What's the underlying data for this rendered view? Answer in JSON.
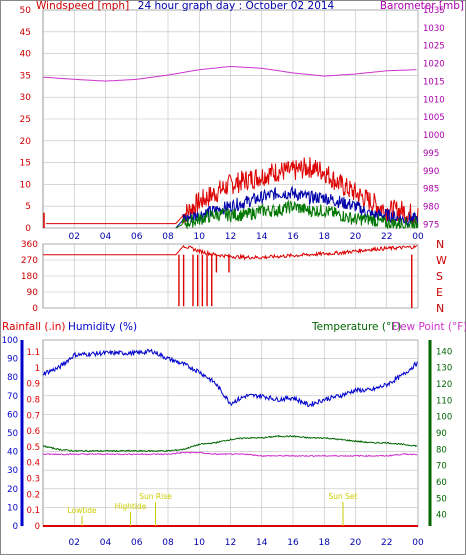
{
  "title": "24 hour graph day : October 02 2014",
  "colors": {
    "wind": "#dd0000",
    "gust_avg": "#0000aa",
    "wind_avg": "#007700",
    "barometer": "#cc33cc",
    "humidity": "#0000cc",
    "temperature": "#006600",
    "dewpoint": "#cc33cc",
    "rain": "#dd0000",
    "sun": "#cccc00",
    "axis_left": "#cc0000",
    "axis_right": "#aa00aa",
    "grid": "#c0c0c0"
  },
  "chart_data": [
    {
      "type": "line",
      "panel": "wind-barometer",
      "title": "24 hour graph day : October 02 2014",
      "ylabel": "Windspeed [mph]",
      "y2label": "Barometer [mb]",
      "x_ticks": [
        "02",
        "04",
        "06",
        "08",
        "10",
        "12",
        "14",
        "16",
        "18",
        "20",
        "22",
        "00"
      ],
      "y_ticks": [
        0,
        5,
        10,
        15,
        20,
        25,
        30,
        35,
        40,
        45,
        50
      ],
      "ylim": [
        0,
        50
      ],
      "y2_ticks": [
        975,
        980,
        985,
        990,
        995,
        1000,
        1005,
        1010,
        1015,
        1020,
        1025,
        1030,
        1035
      ],
      "y2lim": [
        974,
        1035
      ],
      "grid": true,
      "series": [
        {
          "name": "Windspeed",
          "axis": "left",
          "x": [
            0.2,
            0.5,
            1,
            4,
            8.5,
            9,
            10,
            11,
            12,
            13,
            14,
            15,
            16,
            17,
            18,
            19,
            20,
            21,
            22,
            23,
            23.8
          ],
          "y": [
            1,
            1,
            1,
            1,
            1,
            3,
            6,
            8,
            10,
            11,
            12,
            13,
            13,
            14,
            13,
            10,
            8,
            6,
            4,
            4,
            3
          ]
        },
        {
          "name": "",
          "axis": "left",
          "x": [
            8.5,
            9,
            10,
            11,
            12,
            13,
            14,
            15,
            16,
            17,
            18,
            19,
            20,
            21,
            22,
            23,
            23.8
          ],
          "y": [
            0,
            2,
            3,
            4,
            5,
            6,
            7,
            8,
            8,
            7,
            7,
            6,
            5,
            3,
            3,
            2,
            2
          ]
        },
        {
          "name": "",
          "axis": "left",
          "x": [
            8.5,
            9,
            10,
            11,
            12,
            13,
            14,
            15,
            16,
            17,
            18,
            19,
            20,
            21,
            22,
            23,
            23.8
          ],
          "y": [
            0,
            1,
            2,
            3,
            3,
            3,
            4,
            4,
            5,
            4,
            4,
            3,
            2,
            2,
            1,
            1,
            1
          ]
        },
        {
          "name": "Barometer",
          "axis": "right",
          "x": [
            0,
            2,
            4,
            6,
            8,
            10,
            12,
            14,
            16,
            18,
            20,
            22,
            24
          ],
          "y": [
            1016.2,
            1015.6,
            1015.1,
            1015.6,
            1016.8,
            1018.3,
            1019.2,
            1018.7,
            1017.4,
            1016.5,
            1017.1,
            1018.0,
            1018.3
          ]
        }
      ]
    },
    {
      "type": "line",
      "panel": "wind-direction",
      "y_ticks": [
        0,
        90,
        180,
        270,
        360
      ],
      "ylim": [
        0,
        360
      ],
      "y2_ticks": [
        "N",
        "W",
        "S",
        "E",
        "N"
      ],
      "x_ticks": [
        "02",
        "04",
        "06",
        "08",
        "10",
        "12",
        "14",
        "16",
        "18",
        "20",
        "22",
        "00"
      ],
      "grid": true,
      "series": [
        {
          "name": "Wind direction",
          "x": [
            0,
            1,
            2,
            4,
            6,
            8,
            8.5,
            9,
            10,
            11,
            12,
            13,
            14,
            15,
            16,
            17,
            18,
            19,
            20,
            21,
            22,
            23,
            24
          ],
          "y": [
            300,
            300,
            300,
            300,
            300,
            300,
            300,
            350,
            320,
            300,
            290,
            285,
            285,
            290,
            295,
            300,
            305,
            310,
            320,
            330,
            335,
            340,
            345
          ]
        }
      ]
    },
    {
      "type": "line",
      "panel": "humidity-temperature",
      "legend": [
        "Rainfall (.in)",
        "Humidity (%)",
        "Temperature (°F)",
        "Dew Point (°F)"
      ],
      "y_rain_ticks": [
        0,
        0.1,
        0.2,
        0.3,
        0.4,
        0.5,
        0.6,
        0.7,
        0.8,
        0.9,
        1,
        1.1
      ],
      "y_hum_ticks": [
        0,
        10,
        20,
        30,
        40,
        50,
        60,
        70,
        80,
        90,
        100
      ],
      "ylim_hum": [
        0,
        100
      ],
      "y_temp_ticks": [
        40,
        50,
        60,
        70,
        80,
        90,
        100,
        110,
        120,
        130,
        140
      ],
      "ylim_temp": [
        33,
        147
      ],
      "x_ticks": [
        "02",
        "04",
        "06",
        "08",
        "10",
        "12",
        "14",
        "16",
        "18",
        "20",
        "22",
        "00"
      ],
      "annotations": [
        {
          "text": "Lowtide",
          "x": 2.5
        },
        {
          "text": "Hightide",
          "x": 5.6
        },
        {
          "text": "Sun Rise",
          "x": 7.2
        },
        {
          "text": "Sun Set",
          "x": 19.2
        }
      ],
      "grid": true,
      "series": [
        {
          "name": "Humidity",
          "axis": "hum",
          "x": [
            0,
            1,
            2,
            4,
            6,
            7,
            8,
            9,
            10,
            11,
            12,
            13,
            14,
            15,
            16,
            17,
            18,
            19,
            20,
            21,
            22,
            23,
            24
          ],
          "y": [
            82,
            85,
            92,
            93,
            93,
            94,
            90,
            87,
            83,
            77,
            66,
            70,
            70,
            68,
            69,
            65,
            68,
            70,
            73,
            73,
            76,
            81,
            88
          ]
        },
        {
          "name": "Temperature",
          "axis": "temp",
          "x": [
            0,
            1,
            2,
            4,
            6,
            7,
            8,
            9,
            10,
            11,
            12,
            13,
            14,
            15,
            16,
            17,
            18,
            19,
            20,
            21,
            22,
            23,
            24
          ],
          "y": [
            82,
            80,
            79,
            79,
            79,
            79,
            79,
            80,
            83,
            84,
            86,
            87,
            87,
            88,
            88,
            87,
            87,
            86,
            85,
            84,
            84,
            83,
            82
          ]
        },
        {
          "name": "Dew Point",
          "axis": "temp",
          "x": [
            0,
            1,
            2,
            4,
            6,
            7,
            8,
            9,
            10,
            11,
            12,
            13,
            14,
            15,
            16,
            17,
            18,
            19,
            20,
            21,
            22,
            23,
            24
          ],
          "y": [
            77,
            77,
            77,
            77,
            77,
            77,
            77,
            78,
            78,
            77,
            77,
            77,
            76,
            76,
            76,
            76,
            76,
            76,
            76,
            76,
            76,
            77,
            77
          ]
        },
        {
          "name": "Rainfall",
          "axis": "rain",
          "x": [
            0,
            24
          ],
          "y": [
            0,
            0
          ]
        }
      ]
    }
  ]
}
